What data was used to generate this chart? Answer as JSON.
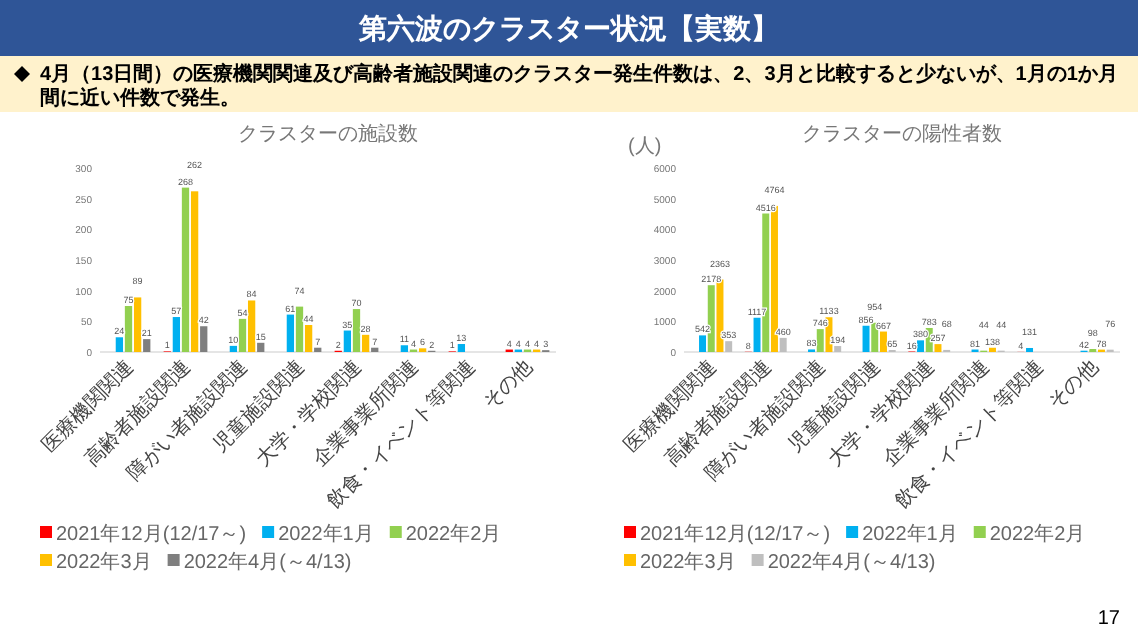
{
  "chart_data": [
    {
      "type": "other",
      "title": "第六波のクラスター状況【実数】",
      "subtitle": "4月（13日間）の医療機関関連及び高齢者施設関連のクラスター発生件数は、2、3月と比較すると少ないが、1月の1か月間に近い件数で発生。",
      "annotations": [
        "17"
      ]
    },
    {
      "type": "bar",
      "title": "クラスターの施設数",
      "categories": [
        "医療機関関連",
        "高齢者施設関連",
        "障がい者施設関連",
        "児童施設関連",
        "大学・学校関連",
        "企業事業所関連",
        "飲食・イベント等関連",
        "その他"
      ],
      "ylim": [
        0,
        300
      ],
      "yticks": [
        0,
        50,
        100,
        150,
        200,
        250,
        300
      ],
      "data_labels": true,
      "legend": "bottom",
      "series": [
        {
          "name": "2021年12月(12/17～)",
          "color": "#ff0000",
          "values": [
            null,
            1,
            null,
            null,
            2,
            null,
            1,
            4
          ]
        },
        {
          "name": "2022年1月",
          "color": "#00b0f0",
          "values": [
            24,
            57,
            10,
            61,
            35,
            11,
            13,
            4
          ]
        },
        {
          "name": "2022年2月",
          "color": "#92d050",
          "values": [
            75,
            268,
            54,
            74,
            70,
            4,
            null,
            4
          ]
        },
        {
          "name": "2022年3月",
          "color": "#ffc000",
          "values": [
            89,
            262,
            84,
            44,
            28,
            6,
            null,
            4
          ]
        },
        {
          "name": "2022年4月(～4/13)",
          "color": "#7f7f7f",
          "values": [
            21,
            42,
            15,
            7,
            7,
            2,
            null,
            3
          ]
        }
      ]
    },
    {
      "type": "bar",
      "title": "クラスターの陽性者数",
      "ylabel": "(人)",
      "categories": [
        "医療機関関連",
        "高齢者施設関連",
        "障がい者施設関連",
        "児童施設関連",
        "大学・学校関連",
        "企業事業所関連",
        "飲食・イベント等関連",
        "その他"
      ],
      "ylim": [
        0,
        6000
      ],
      "yticks": [
        0,
        1000,
        2000,
        3000,
        4000,
        5000,
        6000
      ],
      "data_labels": true,
      "legend": "bottom",
      "series": [
        {
          "name": "2021年12月(12/17～)",
          "color": "#ff0000",
          "values": [
            null,
            8,
            null,
            null,
            16,
            null,
            4,
            null
          ]
        },
        {
          "name": "2022年1月",
          "color": "#00b0f0",
          "values": [
            542,
            1117,
            83,
            856,
            380,
            81,
            131,
            42
          ]
        },
        {
          "name": "2022年2月",
          "color": "#92d050",
          "values": [
            2178,
            4516,
            746,
            954,
            783,
            44,
            null,
            98
          ]
        },
        {
          "name": "2022年3月",
          "color": "#ffc000",
          "values": [
            2363,
            4764,
            1133,
            667,
            257,
            138,
            null,
            78
          ]
        },
        {
          "name": "2022年4月(～4/13)",
          "color": "#bfbfbf",
          "values": [
            353,
            460,
            194,
            65,
            68,
            44,
            null,
            76
          ]
        }
      ]
    }
  ]
}
